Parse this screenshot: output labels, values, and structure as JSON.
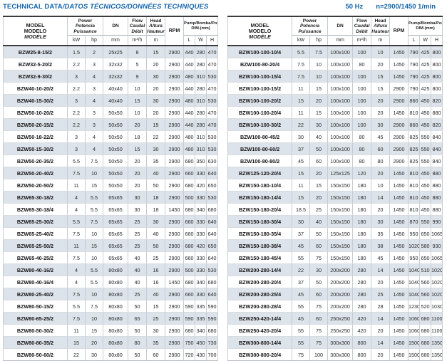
{
  "page": {
    "title_en": "TECHNICAL DATA",
    "title_rest": "/DATOS TÉCNICOS/DONNÉES TECHNIQUES",
    "frequency": "50 Hz",
    "speed": "n=2900/1450 1/min"
  },
  "header": {
    "model_l1": "MODEL",
    "model_l2": "MODELO",
    "model_l3": "MODÈLE",
    "power_l1": "Power",
    "power_l2": "Potencia",
    "power_l3": "Puissance",
    "dn": "DN",
    "flow_l1": "Flow",
    "flow_l2": "Caudal",
    "flow_l3": "Débit",
    "head_l1": "Head",
    "head_l2": "Altura",
    "head_l3": "Hauteur",
    "rpm": "RPM",
    "dim_l1": "Pump/Bomba/Pompe",
    "dim_l2": "DIM.(mm)",
    "unit_kw": "kW",
    "unit_hp": "hp",
    "unit_mm": "mm",
    "unit_flow": "m³/h",
    "unit_head": "m",
    "unit_l": "L",
    "unit_w": "W",
    "unit_h": "H"
  },
  "tables": {
    "left": {
      "rows": [
        [
          "BZW25-8-15/2",
          "1.5",
          "2",
          "25x25",
          "8",
          "15",
          "2900",
          "440",
          "280",
          "470"
        ],
        [
          "BZW32-5-20/2",
          "2.2",
          "3",
          "32x32",
          "5",
          "20",
          "2900",
          "440",
          "280",
          "470"
        ],
        [
          "BZW32-9-30/2",
          "3",
          "4",
          "32x32",
          "9",
          "30",
          "2900",
          "480",
          "310",
          "530"
        ],
        [
          "BZW40-10-20/2",
          "2.2",
          "3",
          "40x40",
          "10",
          "20",
          "2900",
          "440",
          "280",
          "470"
        ],
        [
          "BZW40-15-30/2",
          "3",
          "4",
          "40x40",
          "15",
          "30",
          "2900",
          "480",
          "310",
          "530"
        ],
        [
          "BZW50-10-20/2",
          "2.2",
          "3",
          "50x50",
          "10",
          "20",
          "2900",
          "440",
          "280",
          "470"
        ],
        [
          "BZW50-20-15/2",
          "2.2",
          "3",
          "50x50",
          "20",
          "15",
          "2900",
          "440",
          "280",
          "470"
        ],
        [
          "BZW50-18-22/2",
          "3",
          "4",
          "50x50",
          "18",
          "22",
          "2900",
          "480",
          "310",
          "530"
        ],
        [
          "BZW50-15-30/2",
          "3",
          "4",
          "50x50",
          "15",
          "30",
          "2900",
          "480",
          "310",
          "530"
        ],
        [
          "BZW50-20-35/2",
          "5.5",
          "7.5",
          "50x50",
          "20",
          "35",
          "2900",
          "680",
          "350",
          "630"
        ],
        [
          "BZW50-20-40/2",
          "7.5",
          "10",
          "50x50",
          "20",
          "40",
          "2900",
          "660",
          "330",
          "640"
        ],
        [
          "BZW50-20-50/2",
          "11",
          "15",
          "50x50",
          "20",
          "50",
          "2900",
          "680",
          "420",
          "650"
        ],
        [
          "BZW65-30-18/2",
          "4",
          "5.5",
          "65x65",
          "30",
          "18",
          "2900",
          "500",
          "330",
          "530"
        ],
        [
          "BZW65-30-18/4",
          "4",
          "5.5",
          "65x65",
          "30",
          "18",
          "1450",
          "680",
          "340",
          "680"
        ],
        [
          "BZW65-25-30/2",
          "5.5",
          "7.5",
          "65x65",
          "25",
          "30",
          "2900",
          "660",
          "330",
          "640"
        ],
        [
          "BZW65-25-40/2",
          "7.5",
          "10",
          "65x65",
          "25",
          "40",
          "2900",
          "660",
          "330",
          "640"
        ],
        [
          "BZW65-25-50/2",
          "11",
          "15",
          "65x65",
          "25",
          "50",
          "2900",
          "680",
          "420",
          "650"
        ],
        [
          "BZW65-40-25/2",
          "7.5",
          "10",
          "65x65",
          "40",
          "25",
          "2900",
          "660",
          "330",
          "640"
        ],
        [
          "BZW80-40-16/2",
          "4",
          "5.5",
          "80x80",
          "40",
          "16",
          "2900",
          "500",
          "330",
          "530"
        ],
        [
          "BZW80-40-16/4",
          "4",
          "5.5",
          "80x80",
          "40",
          "16",
          "1450",
          "680",
          "340",
          "680"
        ],
        [
          "BZW80-25-40/2",
          "7.5",
          "10",
          "80x80",
          "25",
          "40",
          "2900",
          "660",
          "330",
          "640"
        ],
        [
          "BZW80-50-15/2",
          "5.5",
          "7.5",
          "80x80",
          "50",
          "15",
          "2900",
          "590",
          "335",
          "590"
        ],
        [
          "BZW80-65-25/2",
          "7.5",
          "10",
          "80x80",
          "65",
          "25",
          "2900",
          "590",
          "335",
          "590"
        ],
        [
          "BZW80-50-30/2",
          "11",
          "15",
          "80x80",
          "50",
          "30",
          "2900",
          "680",
          "340",
          "680"
        ],
        [
          "BZW80-80-35/2",
          "15",
          "20",
          "80x80",
          "80",
          "35",
          "2900",
          "750",
          "450",
          "730"
        ],
        [
          "BZW80-50-60/2",
          "22",
          "30",
          "80x80",
          "50",
          "60",
          "2900",
          "720",
          "430",
          "700"
        ]
      ]
    },
    "right": {
      "rows": [
        [
          "BZW100-100-10/4",
          "5.5",
          "7.5",
          "100x100",
          "100",
          "10",
          "1450",
          "790",
          "425",
          "800"
        ],
        [
          "BZW100-80-20/4",
          "7.5",
          "10",
          "100x100",
          "80",
          "20",
          "1450",
          "790",
          "425",
          "800"
        ],
        [
          "BZW100-100-15/4",
          "7.5",
          "10",
          "100x100",
          "100",
          "15",
          "1450",
          "790",
          "425",
          "800"
        ],
        [
          "BZW100-100-15/2",
          "11",
          "15",
          "100x100",
          "100",
          "15",
          "2900",
          "790",
          "425",
          "800"
        ],
        [
          "BZW100-100-20/2",
          "15",
          "20",
          "100x100",
          "100",
          "20",
          "2900",
          "860",
          "450",
          "820"
        ],
        [
          "BZW100-100-20/4",
          "11",
          "15",
          "100x100",
          "100",
          "20",
          "1450",
          "810",
          "450",
          "880"
        ],
        [
          "BZW100-100-30/2",
          "22",
          "30",
          "100x100",
          "100",
          "30",
          "2900",
          "860",
          "450",
          "820"
        ],
        [
          "BZW100-80-45/2",
          "30",
          "40",
          "100x100",
          "80",
          "45",
          "2900",
          "825",
          "550",
          "840"
        ],
        [
          "BZW100-80-60/2",
          "37",
          "50",
          "100x100",
          "80",
          "60",
          "2900",
          "825",
          "550",
          "840"
        ],
        [
          "BZW100-80-80/2",
          "45",
          "60",
          "100x100",
          "80",
          "80",
          "2900",
          "825",
          "550",
          "840"
        ],
        [
          "BZW125-120-20/4",
          "15",
          "20",
          "125x125",
          "120",
          "20",
          "1450",
          "810",
          "450",
          "880"
        ],
        [
          "BZW150-180-10/4",
          "11",
          "15",
          "150x150",
          "180",
          "10",
          "1450",
          "810",
          "450",
          "880"
        ],
        [
          "BZW150-180-14/4",
          "15",
          "20",
          "150x150",
          "180",
          "14",
          "1450",
          "810",
          "450",
          "880"
        ],
        [
          "BZW150-180-20/4",
          "18.5",
          "25",
          "150x150",
          "180",
          "20",
          "1450",
          "810",
          "450",
          "880"
        ],
        [
          "BZW150-180-30/4",
          "30",
          "40",
          "150x150",
          "180",
          "30",
          "1450",
          "870",
          "550",
          "990"
        ],
        [
          "BZW150-180-35/4",
          "37",
          "50",
          "150x150",
          "180",
          "35",
          "1450",
          "950",
          "650",
          "1065"
        ],
        [
          "BZW150-180-38/4",
          "45",
          "60",
          "150x150",
          "180",
          "38",
          "1450",
          "1020",
          "580",
          "930"
        ],
        [
          "BZW150-180-45/4",
          "55",
          "75",
          "150x150",
          "180",
          "45",
          "1450",
          "950",
          "650",
          "1065"
        ],
        [
          "BZW200-280-14/4",
          "22",
          "30",
          "200x200",
          "280",
          "14",
          "1450",
          "1040",
          "510",
          "1020"
        ],
        [
          "BZW200-280-20/4",
          "37",
          "50",
          "200x200",
          "280",
          "20",
          "1450",
          "1040",
          "560",
          "1020"
        ],
        [
          "BZW200-280-25/4",
          "45",
          "60",
          "200x200",
          "280",
          "25",
          "1450",
          "1040",
          "560",
          "1020"
        ],
        [
          "BZW200-280-28/4",
          "55",
          "75",
          "200x200",
          "280",
          "28",
          "1450",
          "1230",
          "520",
          "1030"
        ],
        [
          "BZW250-420-14/4",
          "45",
          "60",
          "250x250",
          "420",
          "14",
          "1450",
          "1060",
          "680",
          "1100"
        ],
        [
          "BZW250-420-20/4",
          "55",
          "75",
          "250x250",
          "420",
          "20",
          "1450",
          "1060",
          "680",
          "1100"
        ],
        [
          "BZW300-800-14/4",
          "55",
          "75",
          "300x300",
          "800",
          "14",
          "1450",
          "1500",
          "680",
          "1350"
        ],
        [
          "BZW300-800-20/4",
          "75",
          "100",
          "300x300",
          "800",
          "20",
          "1450",
          "1500",
          "680",
          "1350"
        ]
      ]
    }
  }
}
